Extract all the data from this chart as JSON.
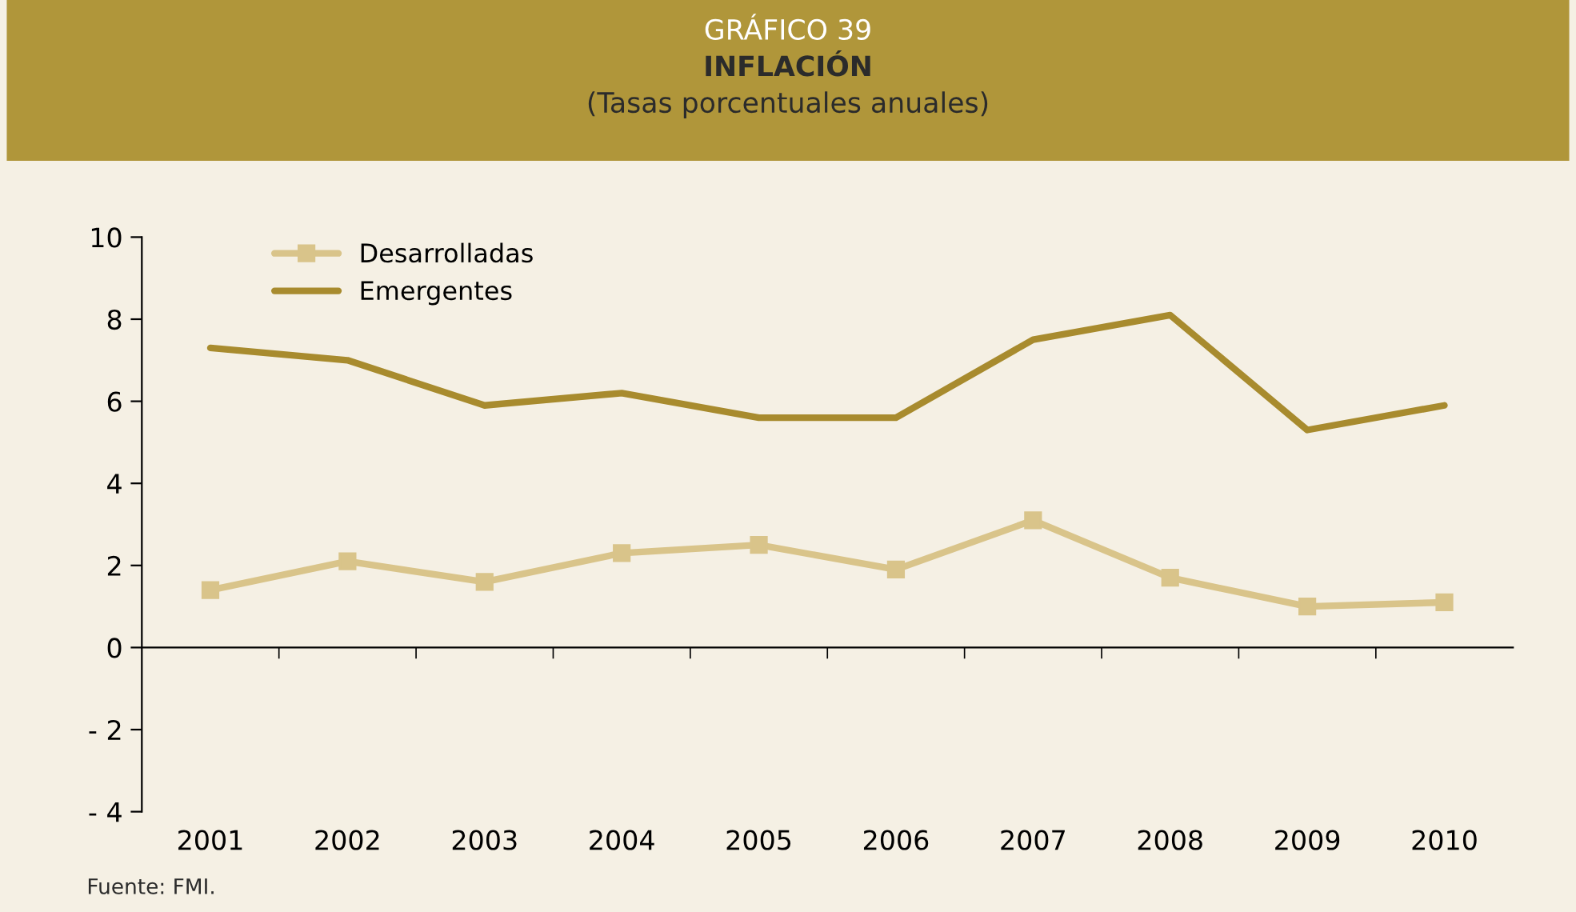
{
  "chart_data": {
    "type": "line",
    "title": "GRÁFICO 39",
    "subtitle": "INFLACIÓN\n(Tasas porcentuales anuales)",
    "categories": [
      "2001",
      "2002",
      "2003",
      "2004",
      "2005",
      "2006",
      "2007",
      "2008",
      "2009",
      "2010"
    ],
    "series": [
      {
        "name": "Desarrolladas",
        "color": "#d9c48a",
        "marker": "square",
        "values": [
          1.4,
          2.1,
          1.6,
          2.3,
          2.5,
          1.9,
          3.1,
          1.7,
          1.0,
          1.1
        ]
      },
      {
        "name": "Emergentes",
        "color": "#a88b2e",
        "marker": "none",
        "values": [
          7.3,
          7.0,
          5.9,
          6.2,
          5.6,
          5.6,
          7.5,
          8.1,
          5.3,
          5.9
        ]
      }
    ],
    "ylim": [
      -4,
      10
    ],
    "yticks": [
      {
        "value": -4,
        "label": "- 4"
      },
      {
        "value": -2,
        "label": "- 2"
      },
      0,
      2,
      4,
      6,
      8,
      10
    ],
    "legend": "top left",
    "line_style": "solid",
    "annotations": [
      "Fuente: FMI."
    ]
  }
}
